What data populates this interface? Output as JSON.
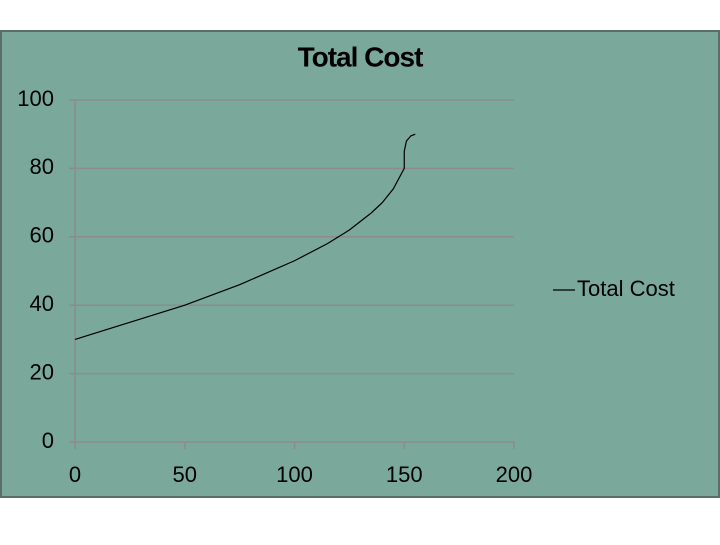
{
  "chart_data": {
    "type": "line",
    "title": "Total Cost",
    "x": [
      0,
      25,
      50,
      75,
      100,
      115,
      125,
      135,
      140,
      145,
      150,
      150,
      151,
      153,
      155
    ],
    "series": [
      {
        "name": "Total Cost",
        "color": "#000000",
        "values": [
          30,
          35,
          40,
          46,
          53,
          58,
          62,
          67,
          70,
          74,
          80,
          85,
          88,
          89.5,
          90
        ]
      }
    ],
    "xlim": [
      0,
      200
    ],
    "xticks": [
      0,
      50,
      100,
      150,
      200
    ],
    "ylim": [
      0,
      100
    ],
    "yticks": [
      0,
      20,
      40,
      60,
      80,
      100
    ],
    "grid": true,
    "legend": "right"
  }
}
